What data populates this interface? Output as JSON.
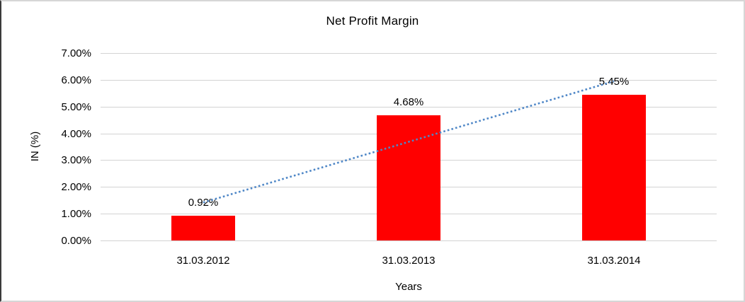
{
  "chart_data": {
    "type": "bar",
    "title": "Net Profit Margin",
    "xlabel": "Years",
    "ylabel": "IN (%)",
    "categories": [
      "31.03.2012",
      "31.03.2013",
      "31.03.2014"
    ],
    "values": [
      0.92,
      4.68,
      5.45
    ],
    "data_labels": [
      "0.92%",
      "4.68%",
      "5.45%"
    ],
    "ytick_labels": [
      "0.00%",
      "1.00%",
      "2.00%",
      "3.00%",
      "4.00%",
      "5.00%",
      "6.00%",
      "7.00%"
    ],
    "ylim": [
      0,
      7
    ],
    "ytick_step": 1,
    "grid": true,
    "legend": "none",
    "bar_color": "#ff0000",
    "gridline_color": "#d3d3d3",
    "text_color": "#000000",
    "trendline": {
      "type": "linear",
      "style": "dotted",
      "color": "#4f87c7",
      "endpoints_pct": [
        1.42,
        5.95
      ]
    }
  }
}
